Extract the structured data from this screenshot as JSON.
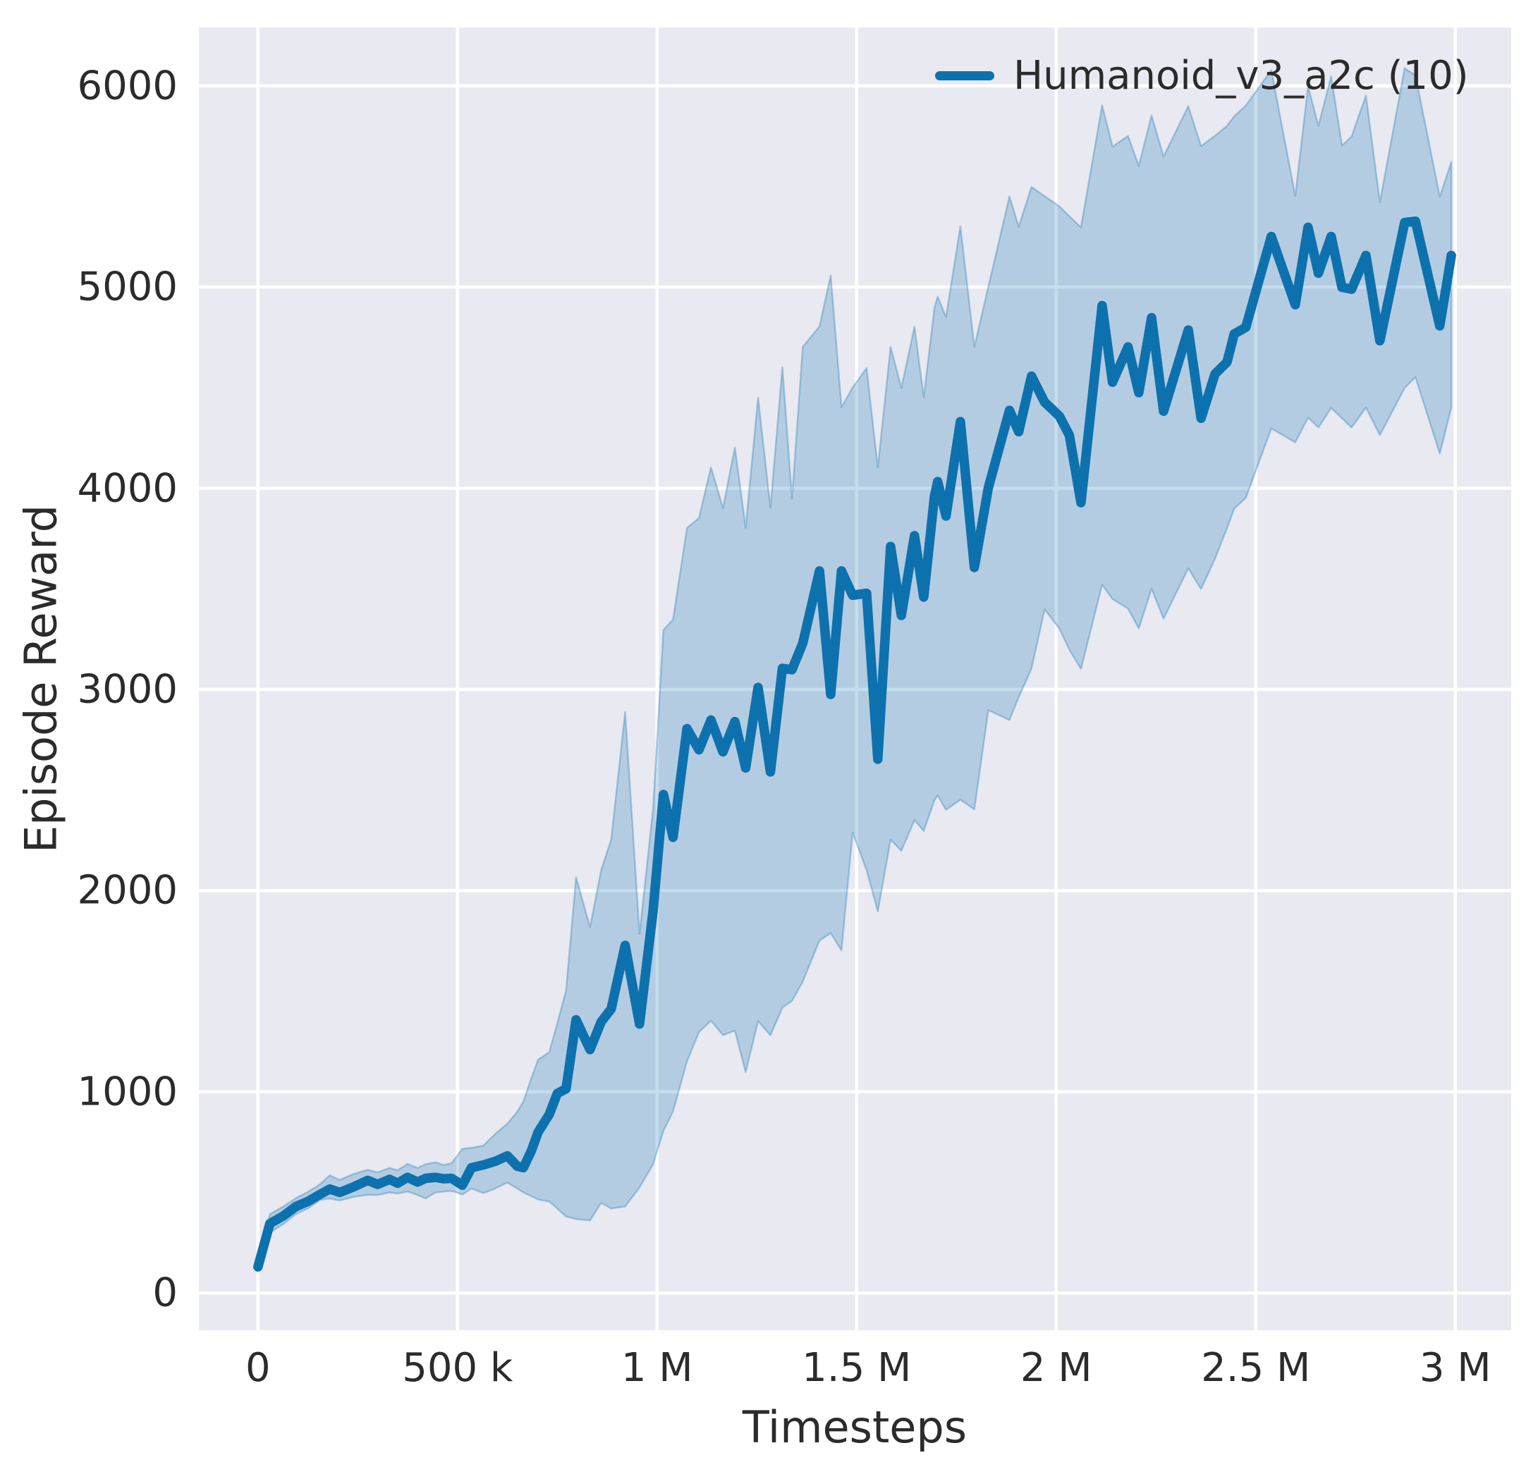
{
  "chart_data": {
    "type": "line",
    "title": "",
    "xlabel": "Timesteps",
    "ylabel": "Episode Reward",
    "grid": true,
    "legend_position": "upper right",
    "plot_background": "#e9e9f1",
    "grid_color": "#ffffff",
    "text_color": "#2b2b2b",
    "xlim": [
      -148000,
      3140000
    ],
    "ylim": [
      -185,
      6290
    ],
    "x_ticks": [
      {
        "v": 0,
        "label": "0"
      },
      {
        "v": 500000,
        "label": "500 k"
      },
      {
        "v": 1000000,
        "label": "1 M"
      },
      {
        "v": 1500000,
        "label": "1.5 M"
      },
      {
        "v": 2000000,
        "label": "2 M"
      },
      {
        "v": 2500000,
        "label": "2.5 M"
      },
      {
        "v": 3000000,
        "label": "3 M"
      }
    ],
    "y_ticks": [
      {
        "v": 0,
        "label": "0"
      },
      {
        "v": 1000,
        "label": "1000"
      },
      {
        "v": 2000,
        "label": "2000"
      },
      {
        "v": 3000,
        "label": "3000"
      },
      {
        "v": 4000,
        "label": "4000"
      },
      {
        "v": 5000,
        "label": "5000"
      },
      {
        "v": 6000,
        "label": "6000"
      }
    ],
    "series": [
      {
        "name": "Humanoid_v3_a2c (10)",
        "color": "#0d71ae",
        "band_fill_opacity": 0.24,
        "band_edge_opacity": 0.3,
        "x": [
          0,
          30000,
          65000,
          95000,
          125000,
          155000,
          180000,
          205000,
          240000,
          275000,
          300000,
          330000,
          350000,
          375000,
          400000,
          420000,
          445000,
          465000,
          485000,
          512000,
          535000,
          565000,
          595000,
          625000,
          650000,
          665000,
          685000,
          702000,
          730000,
          750000,
          772000,
          797000,
          832000,
          860000,
          885000,
          920000,
          956000,
          990000,
          1016000,
          1040000,
          1075000,
          1105000,
          1135000,
          1165000,
          1195000,
          1222000,
          1253000,
          1284000,
          1314000,
          1338000,
          1365000,
          1407000,
          1435000,
          1462000,
          1490000,
          1525000,
          1553000,
          1585000,
          1612000,
          1645000,
          1668000,
          1695000,
          1703000,
          1724000,
          1760000,
          1795000,
          1830000,
          1883000,
          1906000,
          1938000,
          1971000,
          2008000,
          2033000,
          2062000,
          2115000,
          2141000,
          2180000,
          2207000,
          2239000,
          2269000,
          2331000,
          2363000,
          2398000,
          2428000,
          2446000,
          2475000,
          2539000,
          2599000,
          2631000,
          2657000,
          2689000,
          2716000,
          2740000,
          2776000,
          2811000,
          2873000,
          2900000,
          2961000,
          2990000
        ],
        "mean": [
          130,
          345,
          385,
          430,
          455,
          490,
          517,
          500,
          528,
          560,
          540,
          565,
          546,
          575,
          552,
          570,
          575,
          568,
          570,
          536,
          623,
          637,
          655,
          682,
          630,
          623,
          707,
          800,
          888,
          992,
          1015,
          1358,
          1210,
          1348,
          1412,
          1728,
          1337,
          1900,
          2478,
          2265,
          2805,
          2700,
          2848,
          2690,
          2840,
          2610,
          3010,
          2590,
          3105,
          3098,
          3230,
          3589,
          2975,
          3589,
          3468,
          3478,
          2653,
          3711,
          3368,
          3764,
          3459,
          3960,
          4033,
          3862,
          4331,
          3606,
          4002,
          4387,
          4281,
          4557,
          4428,
          4358,
          4264,
          3928,
          4908,
          4527,
          4702,
          4475,
          4848,
          4383,
          4786,
          4348,
          4568,
          4627,
          4767,
          4800,
          5251,
          4912,
          5297,
          5069,
          5251,
          4999,
          4989,
          5157,
          4733,
          5321,
          5327,
          4807,
          5157
        ],
        "lo": [
          110,
          300,
          345,
          392,
          420,
          462,
          470,
          460,
          478,
          488,
          487,
          500,
          494,
          505,
          487,
          470,
          500,
          504,
          508,
          490,
          520,
          497,
          520,
          549,
          519,
          500,
          481,
          465,
          455,
          420,
          380,
          368,
          361,
          448,
          420,
          430,
          525,
          640,
          806,
          903,
          1152,
          1297,
          1353,
          1282,
          1304,
          1098,
          1352,
          1281,
          1419,
          1452,
          1548,
          1752,
          1789,
          1703,
          2288,
          2102,
          1897,
          2253,
          2198,
          2351,
          2297,
          2449,
          2474,
          2401,
          2452,
          2404,
          2897,
          2848,
          2962,
          3103,
          3398,
          3302,
          3198,
          3102,
          3521,
          3449,
          3402,
          3303,
          3501,
          3352,
          3602,
          3499,
          3651,
          3801,
          3899,
          3952,
          4297,
          4228,
          4351,
          4302,
          4399,
          4348,
          4302,
          4401,
          4264,
          4499,
          4552,
          4172,
          4402
        ],
        "hi": [
          160,
          392,
          432,
          472,
          502,
          540,
          585,
          562,
          592,
          612,
          600,
          622,
          610,
          642,
          622,
          640,
          650,
          636,
          645,
          716,
          722,
          733,
          792,
          842,
          902,
          952,
          1068,
          1160,
          1197,
          1341,
          1504,
          2066,
          1818,
          2102,
          2253,
          2888,
          1784,
          2407,
          3295,
          3348,
          3803,
          3852,
          4104,
          3901,
          4203,
          3804,
          4451,
          3903,
          4602,
          3948,
          4703,
          4804,
          5058,
          4402,
          4501,
          4597,
          4103,
          4702,
          4498,
          4803,
          4452,
          4897,
          4952,
          4851,
          5302,
          4702,
          5001,
          5451,
          5299,
          5497,
          5452,
          5401,
          5352,
          5297,
          5903,
          5698,
          5751,
          5602,
          5853,
          5648,
          5899,
          5701,
          5752,
          5801,
          5849,
          5902,
          6078,
          5452,
          5998,
          5801,
          6047,
          5703,
          5748,
          5952,
          5421,
          6088,
          6052,
          5449,
          5622
        ]
      }
    ]
  }
}
